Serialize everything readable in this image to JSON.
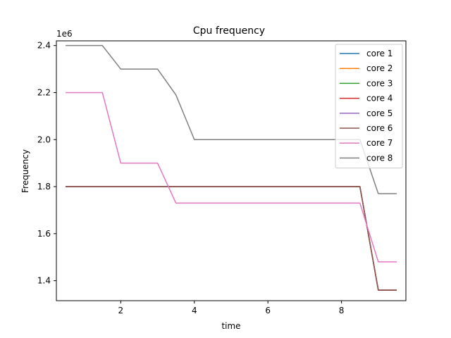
{
  "chart_data": {
    "type": "line",
    "title": "Cpu frequency",
    "xlabel": "time",
    "ylabel": "Frequency",
    "y_offset_label": "1e6",
    "xlim": [
      0.25,
      9.75
    ],
    "ylim": [
      1.315,
      2.42
    ],
    "x_ticks": [
      2,
      4,
      6,
      8
    ],
    "x_tick_labels": [
      "2",
      "4",
      "6",
      "8"
    ],
    "y_ticks": [
      1.4,
      1.6,
      1.8,
      2.0,
      2.2,
      2.4
    ],
    "y_tick_labels": [
      "1.4",
      "1.6",
      "1.8",
      "2.0",
      "2.2",
      "2.4"
    ],
    "legend_position": "top-right",
    "grid": false,
    "x": [
      0.5,
      1.0,
      1.5,
      2.0,
      2.5,
      3.0,
      3.5,
      4.0,
      4.5,
      5.0,
      5.5,
      6.0,
      6.5,
      7.0,
      7.5,
      8.0,
      8.5,
      9.0,
      9.5
    ],
    "series": [
      {
        "name": "core 1",
        "color": "#1f77b4",
        "values": [
          1.8,
          1.8,
          1.8,
          1.8,
          1.8,
          1.8,
          1.8,
          1.8,
          1.8,
          1.8,
          1.8,
          1.8,
          1.8,
          1.8,
          1.8,
          1.8,
          1.8,
          1.36,
          1.36
        ]
      },
      {
        "name": "core 2",
        "color": "#ff7f0e",
        "values": [
          1.8,
          1.8,
          1.8,
          1.8,
          1.8,
          1.8,
          1.8,
          1.8,
          1.8,
          1.8,
          1.8,
          1.8,
          1.8,
          1.8,
          1.8,
          1.8,
          1.8,
          1.36,
          1.36
        ]
      },
      {
        "name": "core 3",
        "color": "#2ca02c",
        "values": [
          1.8,
          1.8,
          1.8,
          1.8,
          1.8,
          1.8,
          1.8,
          1.8,
          1.8,
          1.8,
          1.8,
          1.8,
          1.8,
          1.8,
          1.8,
          1.8,
          1.8,
          1.36,
          1.36
        ]
      },
      {
        "name": "core 4",
        "color": "#d62728",
        "values": [
          1.8,
          1.8,
          1.8,
          1.8,
          1.8,
          1.8,
          1.8,
          1.8,
          1.8,
          1.8,
          1.8,
          1.8,
          1.8,
          1.8,
          1.8,
          1.8,
          1.8,
          1.36,
          1.36
        ]
      },
      {
        "name": "core 5",
        "color": "#9467bd",
        "values": [
          1.8,
          1.8,
          1.8,
          1.8,
          1.8,
          1.8,
          1.8,
          1.8,
          1.8,
          1.8,
          1.8,
          1.8,
          1.8,
          1.8,
          1.8,
          1.8,
          1.8,
          1.36,
          1.36
        ]
      },
      {
        "name": "core 6",
        "color": "#8c564b",
        "values": [
          1.8,
          1.8,
          1.8,
          1.8,
          1.8,
          1.8,
          1.8,
          1.8,
          1.8,
          1.8,
          1.8,
          1.8,
          1.8,
          1.8,
          1.8,
          1.8,
          1.8,
          1.36,
          1.36
        ]
      },
      {
        "name": "core 7",
        "color": "#e377c2",
        "values": [
          2.2,
          2.2,
          2.2,
          1.9,
          1.9,
          1.9,
          1.73,
          1.73,
          1.73,
          1.73,
          1.73,
          1.73,
          1.73,
          1.73,
          1.73,
          1.73,
          1.73,
          1.48,
          1.48
        ]
      },
      {
        "name": "core 8",
        "color": "#7f7f7f",
        "values": [
          2.4,
          2.4,
          2.4,
          2.3,
          2.3,
          2.3,
          2.19,
          2.0,
          2.0,
          2.0,
          2.0,
          2.0,
          2.0,
          2.0,
          2.0,
          2.0,
          2.0,
          1.77,
          1.77
        ]
      }
    ]
  }
}
